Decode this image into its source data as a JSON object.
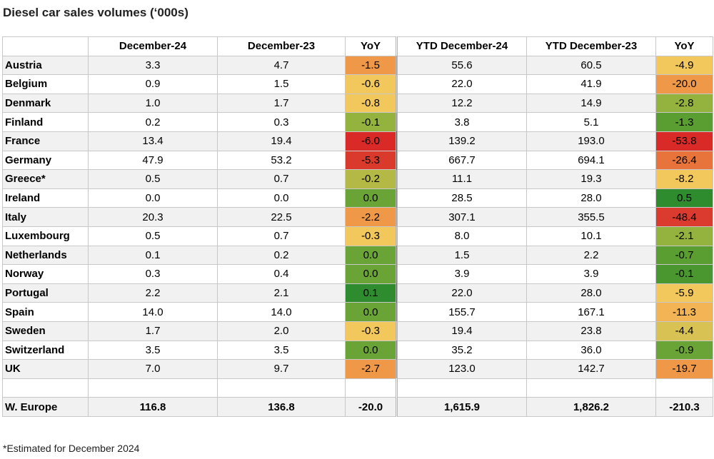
{
  "title": "Diesel car sales volumes (‘000s)",
  "footnote": "*Estimated for December 2024",
  "colors": {
    "dark_green": "#2e8b2e",
    "green": "#5a9e32",
    "light_green": "#93b33e",
    "yellow_green": "#c4bc4c",
    "yellow": "#f2c75c",
    "orange": "#ef9948",
    "red_orange": "#e8743c",
    "red": "#d92a28",
    "row_band": "#f1f1f1",
    "border": "#c8c8c8"
  },
  "chart_data": {
    "type": "table",
    "title": "Diesel car sales volumes (‘000s)",
    "columns": [
      "",
      "December-24",
      "December-23",
      "YoY",
      "YTD December-24",
      "YTD December-23",
      "YoY"
    ],
    "rows": [
      {
        "country": "Austria",
        "dec24": "3.3",
        "dec23": "4.7",
        "yoy": "-1.5",
        "yoy_color": "#ef9948",
        "ytd24": "55.6",
        "ytd23": "60.5",
        "ytd_yoy": "-4.9",
        "ytd_yoy_color": "#f2c75c"
      },
      {
        "country": "Belgium",
        "dec24": "0.9",
        "dec23": "1.5",
        "yoy": "-0.6",
        "yoy_color": "#f2c75c",
        "ytd24": "22.0",
        "ytd23": "41.9",
        "ytd_yoy": "-20.0",
        "ytd_yoy_color": "#ef9948"
      },
      {
        "country": "Denmark",
        "dec24": "1.0",
        "dec23": "1.7",
        "yoy": "-0.8",
        "yoy_color": "#f2c75c",
        "ytd24": "12.2",
        "ytd23": "14.9",
        "ytd_yoy": "-2.8",
        "ytd_yoy_color": "#93b33e"
      },
      {
        "country": "Finland",
        "dec24": "0.2",
        "dec23": "0.3",
        "yoy": "-0.1",
        "yoy_color": "#93b33e",
        "ytd24": "3.8",
        "ytd23": "5.1",
        "ytd_yoy": "-1.3",
        "ytd_yoy_color": "#5a9e32"
      },
      {
        "country": "France",
        "dec24": "13.4",
        "dec23": "19.4",
        "yoy": "-6.0",
        "yoy_color": "#d92a28",
        "ytd24": "139.2",
        "ytd23": "193.0",
        "ytd_yoy": "-53.8",
        "ytd_yoy_color": "#d92a28"
      },
      {
        "country": "Germany",
        "dec24": "47.9",
        "dec23": "53.2",
        "yoy": "-5.3",
        "yoy_color": "#d93a2c",
        "ytd24": "667.7",
        "ytd23": "694.1",
        "ytd_yoy": "-26.4",
        "ytd_yoy_color": "#e8743c"
      },
      {
        "country": "Greece*",
        "dec24": "0.5",
        "dec23": "0.7",
        "yoy": "-0.2",
        "yoy_color": "#b4b844",
        "ytd24": "11.1",
        "ytd23": "19.3",
        "ytd_yoy": "-8.2",
        "ytd_yoy_color": "#f2c75c"
      },
      {
        "country": "Ireland",
        "dec24": "0.0",
        "dec23": "0.0",
        "yoy": "0.0",
        "yoy_color": "#6aa436",
        "ytd24": "28.5",
        "ytd23": "28.0",
        "ytd_yoy": "0.5",
        "ytd_yoy_color": "#2e8b2e"
      },
      {
        "country": "Italy",
        "dec24": "20.3",
        "dec23": "22.5",
        "yoy": "-2.2",
        "yoy_color": "#ef9948",
        "ytd24": "307.1",
        "ytd23": "355.5",
        "ytd_yoy": "-48.4",
        "ytd_yoy_color": "#db3a2e"
      },
      {
        "country": "Luxembourg",
        "dec24": "0.5",
        "dec23": "0.7",
        "yoy": "-0.3",
        "yoy_color": "#f2c75c",
        "ytd24": "8.0",
        "ytd23": "10.1",
        "ytd_yoy": "-2.1",
        "ytd_yoy_color": "#93b33e"
      },
      {
        "country": "Netherlands",
        "dec24": "0.1",
        "dec23": "0.2",
        "yoy": "0.0",
        "yoy_color": "#6aa436",
        "ytd24": "1.5",
        "ytd23": "2.2",
        "ytd_yoy": "-0.7",
        "ytd_yoy_color": "#5a9e32"
      },
      {
        "country": "Norway",
        "dec24": "0.3",
        "dec23": "0.4",
        "yoy": "0.0",
        "yoy_color": "#6aa436",
        "ytd24": "3.9",
        "ytd23": "3.9",
        "ytd_yoy": "-0.1",
        "ytd_yoy_color": "#4a962f"
      },
      {
        "country": "Portugal",
        "dec24": "2.2",
        "dec23": "2.1",
        "yoy": "0.1",
        "yoy_color": "#2e8b2e",
        "ytd24": "22.0",
        "ytd23": "28.0",
        "ytd_yoy": "-5.9",
        "ytd_yoy_color": "#f2c75c"
      },
      {
        "country": "Spain",
        "dec24": "14.0",
        "dec23": "14.0",
        "yoy": "0.0",
        "yoy_color": "#6aa436",
        "ytd24": "155.7",
        "ytd23": "167.1",
        "ytd_yoy": "-11.3",
        "ytd_yoy_color": "#f2b455"
      },
      {
        "country": "Sweden",
        "dec24": "1.7",
        "dec23": "2.0",
        "yoy": "-0.3",
        "yoy_color": "#f2c75c",
        "ytd24": "19.4",
        "ytd23": "23.8",
        "ytd_yoy": "-4.4",
        "ytd_yoy_color": "#d8c254"
      },
      {
        "country": "Switzerland",
        "dec24": "3.5",
        "dec23": "3.5",
        "yoy": "0.0",
        "yoy_color": "#6aa436",
        "ytd24": "35.2",
        "ytd23": "36.0",
        "ytd_yoy": "-0.9",
        "ytd_yoy_color": "#6aa436"
      },
      {
        "country": "UK",
        "dec24": "7.0",
        "dec23": "9.7",
        "yoy": "-2.7",
        "yoy_color": "#ef9948",
        "ytd24": "123.0",
        "ytd23": "142.7",
        "ytd_yoy": "-19.7",
        "ytd_yoy_color": "#ef9948"
      }
    ],
    "total": {
      "country": "W. Europe",
      "dec24": "116.8",
      "dec23": "136.8",
      "yoy": "-20.0",
      "ytd24": "1,615.9",
      "ytd23": "1,826.2",
      "ytd_yoy": "-210.3"
    }
  }
}
